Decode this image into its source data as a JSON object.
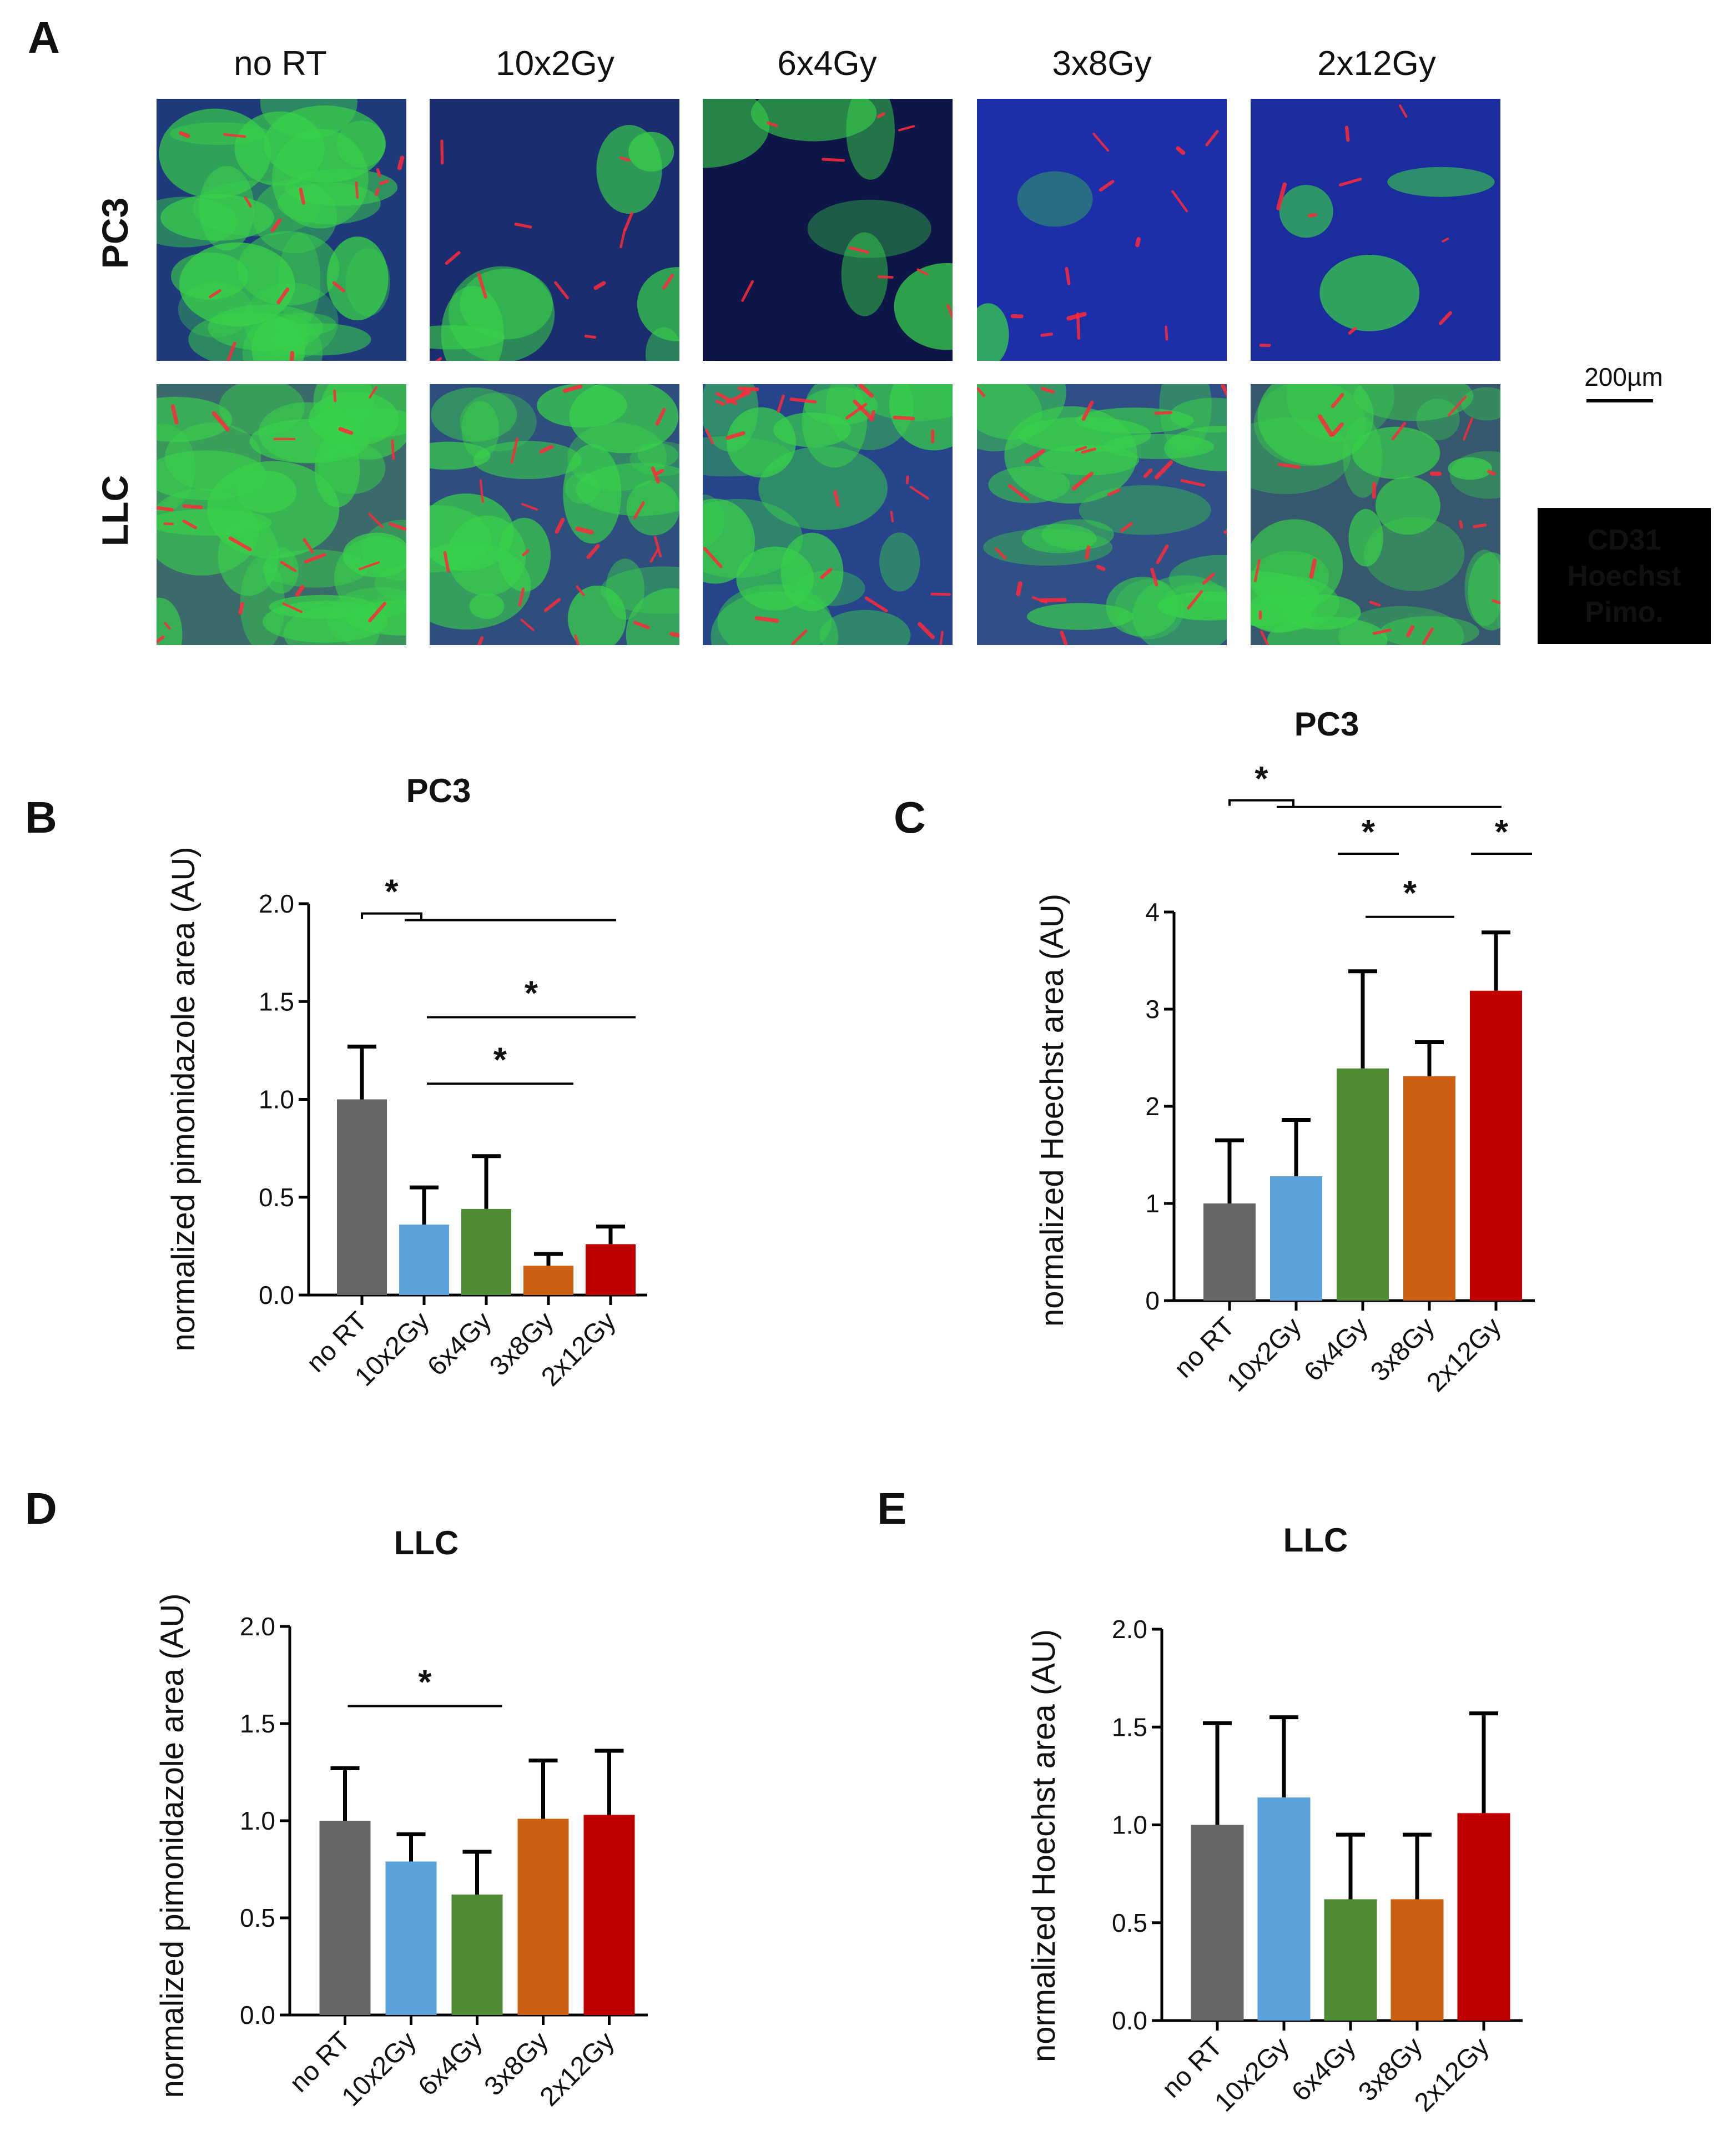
{
  "panel_a": {
    "letter": "A",
    "columns": [
      "no RT",
      "10x2Gy",
      "6x4Gy",
      "3x8Gy",
      "2x12Gy"
    ],
    "rows": [
      "PC3",
      "LLC"
    ],
    "scale_bar": "200µm",
    "legend": [
      {
        "label": "CD31",
        "color": "#ff2020"
      },
      {
        "label": "Hoechst",
        "color": "#3d8ee8"
      },
      {
        "label": "Pimo.",
        "color": "#b9e35a"
      }
    ],
    "tiles": [
      [
        {
          "bg": "#1f3a7a",
          "green": 0.7,
          "red": 0.25
        },
        {
          "bg": "#1a2d6e",
          "green": 0.2,
          "red": 0.2
        },
        {
          "bg": "#0d1646",
          "green": 0.15,
          "red": 0.15
        },
        {
          "bg": "#1d2fa8",
          "green": 0.05,
          "red": 0.2
        },
        {
          "bg": "#1b2c9c",
          "green": 0.08,
          "red": 0.15
        }
      ],
      [
        {
          "bg": "#3a6a6a",
          "green": 0.8,
          "red": 0.4
        },
        {
          "bg": "#2e4f7e",
          "green": 0.6,
          "red": 0.4
        },
        {
          "bg": "#26448a",
          "green": 0.5,
          "red": 0.45
        },
        {
          "bg": "#2f4f86",
          "green": 0.55,
          "red": 0.45
        },
        {
          "bg": "#35586e",
          "green": 0.65,
          "red": 0.35
        }
      ]
    ]
  },
  "colors": {
    "noRT": "#666666",
    "g10x2": "#5ba3dd",
    "g6x4": "#4f8a34",
    "g3x8": "#cc6012",
    "g2x12": "#c00000",
    "error_bar": "#000000",
    "axis": "#000000"
  },
  "chart_data": [
    {
      "id": "B",
      "letter": "B",
      "type": "bar",
      "title": "PC3",
      "xlabel": "",
      "ylabel": "normalized pimonidazole area (AU)",
      "categories": [
        "no RT",
        "10x2Gy",
        "6x4Gy",
        "3x8Gy",
        "2x12Gy"
      ],
      "values": [
        1.0,
        0.36,
        0.44,
        0.15,
        0.26
      ],
      "errors": [
        0.27,
        0.19,
        0.27,
        0.06,
        0.09
      ],
      "ylim": [
        0,
        2.0
      ],
      "yticks": [
        "0.0",
        "0.5",
        "1.0",
        "1.5",
        "2.0"
      ],
      "significance": [
        {
          "label": "*",
          "from": "no RT",
          "to": "2x12Gy",
          "level": 1.95,
          "bracket": true
        },
        {
          "label": "*",
          "from": "10x2Gy",
          "to": "2x12Gy",
          "level": 1.42
        },
        {
          "label": "*",
          "from": "10x2Gy",
          "to": "3x8Gy",
          "level": 1.08
        }
      ]
    },
    {
      "id": "C",
      "letter": "C",
      "type": "bar",
      "title": "PC3",
      "xlabel": "",
      "ylabel": "normalized Hoechst area (AU)",
      "categories": [
        "no RT",
        "10x2Gy",
        "6x4Gy",
        "3x8Gy",
        "2x12Gy"
      ],
      "values": [
        1.0,
        1.28,
        2.39,
        2.31,
        3.19
      ],
      "errors": [
        0.65,
        0.58,
        1.0,
        0.35,
        0.6
      ],
      "ylim": [
        0,
        4
      ],
      "yticks": [
        "0",
        "1",
        "2",
        "3",
        "4"
      ],
      "significance": [
        {
          "label": "*",
          "from": "no RT",
          "to": "2x12Gy",
          "level": 5.15,
          "bracket": true
        },
        {
          "label": "*",
          "from": "6x4Gy",
          "to": "6x4Gy",
          "level": 4.6
        },
        {
          "label": "*",
          "from": "2x12Gy",
          "to": "2x12Gy",
          "level": 4.6
        },
        {
          "label": "*",
          "from": "6x4Gy",
          "to": "3x8Gy",
          "level": 3.95
        }
      ]
    },
    {
      "id": "D",
      "letter": "D",
      "type": "bar",
      "title": "LLC",
      "xlabel": "",
      "ylabel": "normalized pimonidazole area (AU)",
      "categories": [
        "no RT",
        "10x2Gy",
        "6x4Gy",
        "3x8Gy",
        "2x12Gy"
      ],
      "values": [
        1.0,
        0.79,
        0.62,
        1.01,
        1.03
      ],
      "errors": [
        0.27,
        0.14,
        0.22,
        0.3,
        0.33
      ],
      "ylim": [
        0,
        2.0
      ],
      "yticks": [
        "0.0",
        "0.5",
        "1.0",
        "1.5",
        "2.0"
      ],
      "significance": [
        {
          "label": "*",
          "from": "no RT",
          "to": "6x4Gy",
          "level": 1.59
        }
      ]
    },
    {
      "id": "E",
      "letter": "E",
      "type": "bar",
      "title": "LLC",
      "xlabel": "",
      "ylabel": "normalized Hoechst area (AU)",
      "categories": [
        "no RT",
        "10x2Gy",
        "6x4Gy",
        "3x8Gy",
        "2x12Gy"
      ],
      "values": [
        1.0,
        1.14,
        0.62,
        0.62,
        1.06
      ],
      "errors": [
        0.52,
        0.41,
        0.33,
        0.33,
        0.51
      ],
      "ylim": [
        0,
        2.0
      ],
      "yticks": [
        "0.0",
        "0.5",
        "1.0",
        "1.5",
        "2.0"
      ],
      "significance": []
    }
  ]
}
